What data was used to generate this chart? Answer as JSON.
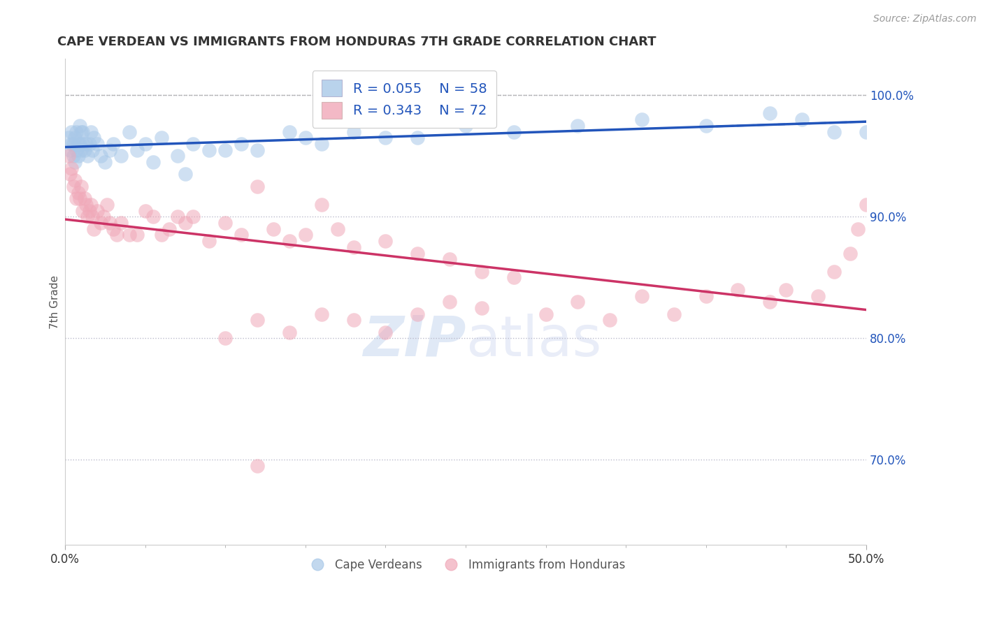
{
  "title": "CAPE VERDEAN VS IMMIGRANTS FROM HONDURAS 7TH GRADE CORRELATION CHART",
  "source_text": "Source: ZipAtlas.com",
  "ylabel": "7th Grade",
  "xlim": [
    0.0,
    50.0
  ],
  "ylim": [
    63.0,
    103.0
  ],
  "yticks": [
    70.0,
    80.0,
    90.0,
    100.0
  ],
  "ytick_labels": [
    "70.0%",
    "80.0%",
    "90.0%",
    "100.0%"
  ],
  "dashed_line_y": 100.0,
  "blue_R": 0.055,
  "blue_N": 58,
  "pink_R": 0.343,
  "pink_N": 72,
  "blue_color": "#A8C8E8",
  "pink_color": "#F0A8B8",
  "blue_line_color": "#2255BB",
  "pink_line_color": "#CC3366",
  "legend_label_blue": "Cape Verdeans",
  "legend_label_pink": "Immigrants from Honduras",
  "blue_scatter_x": [
    0.2,
    0.3,
    0.4,
    0.4,
    0.5,
    0.5,
    0.6,
    0.6,
    0.7,
    0.7,
    0.8,
    0.8,
    0.9,
    0.9,
    1.0,
    1.0,
    1.1,
    1.1,
    1.2,
    1.3,
    1.4,
    1.5,
    1.6,
    1.7,
    1.8,
    2.0,
    2.2,
    2.5,
    2.8,
    3.0,
    3.5,
    4.0,
    4.5,
    5.0,
    5.5,
    6.0,
    7.0,
    7.5,
    8.0,
    9.0,
    10.0,
    11.0,
    12.0,
    14.0,
    15.0,
    16.0,
    18.0,
    20.0,
    22.0,
    25.0,
    28.0,
    32.0,
    36.0,
    40.0,
    44.0,
    46.0,
    48.0,
    50.0
  ],
  "blue_scatter_y": [
    96.5,
    95.5,
    96.0,
    97.0,
    95.0,
    96.0,
    94.5,
    96.5,
    95.5,
    97.0,
    95.0,
    96.0,
    96.0,
    97.5,
    95.5,
    97.0,
    96.0,
    97.0,
    95.5,
    96.0,
    95.0,
    96.0,
    97.0,
    95.5,
    96.5,
    96.0,
    95.0,
    94.5,
    95.5,
    96.0,
    95.0,
    97.0,
    95.5,
    96.0,
    94.5,
    96.5,
    95.0,
    93.5,
    96.0,
    95.5,
    95.5,
    96.0,
    95.5,
    97.0,
    96.5,
    96.0,
    97.0,
    96.5,
    96.5,
    97.5,
    97.0,
    97.5,
    98.0,
    97.5,
    98.5,
    98.0,
    97.0,
    97.0
  ],
  "pink_scatter_x": [
    0.2,
    0.3,
    0.4,
    0.5,
    0.6,
    0.7,
    0.8,
    0.9,
    1.0,
    1.1,
    1.2,
    1.3,
    1.4,
    1.5,
    1.6,
    1.7,
    1.8,
    2.0,
    2.2,
    2.4,
    2.6,
    2.8,
    3.0,
    3.2,
    3.5,
    4.0,
    4.5,
    5.0,
    5.5,
    6.0,
    6.5,
    7.0,
    7.5,
    8.0,
    9.0,
    10.0,
    11.0,
    12.0,
    13.0,
    14.0,
    15.0,
    16.0,
    17.0,
    18.0,
    20.0,
    22.0,
    24.0,
    26.0,
    28.0,
    30.0,
    32.0,
    34.0,
    36.0,
    38.0,
    40.0,
    42.0,
    44.0,
    45.0,
    47.0,
    48.0,
    49.0,
    49.5,
    50.0,
    10.0,
    12.0,
    14.0,
    16.0,
    18.0,
    20.0,
    22.0,
    24.0,
    26.0
  ],
  "pink_scatter_y": [
    95.0,
    93.5,
    94.0,
    92.5,
    93.0,
    91.5,
    92.0,
    91.5,
    92.5,
    90.5,
    91.5,
    91.0,
    90.0,
    90.5,
    91.0,
    90.0,
    89.0,
    90.5,
    89.5,
    90.0,
    91.0,
    89.5,
    89.0,
    88.5,
    89.5,
    88.5,
    88.5,
    90.5,
    90.0,
    88.5,
    89.0,
    90.0,
    89.5,
    90.0,
    88.0,
    89.5,
    88.5,
    92.5,
    89.0,
    88.0,
    88.5,
    91.0,
    89.0,
    87.5,
    88.0,
    87.0,
    86.5,
    85.5,
    85.0,
    82.0,
    83.0,
    81.5,
    83.5,
    82.0,
    83.5,
    84.0,
    83.0,
    84.0,
    83.5,
    85.5,
    87.0,
    89.0,
    91.0,
    80.0,
    81.5,
    80.5,
    82.0,
    81.5,
    80.5,
    82.0,
    83.0,
    82.5
  ],
  "pink_outlier_x": [
    12.0
  ],
  "pink_outlier_y": [
    69.5
  ]
}
